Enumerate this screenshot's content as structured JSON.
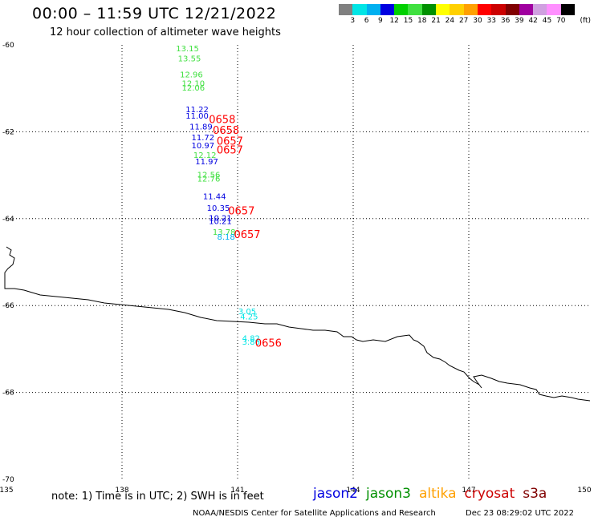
{
  "header": {
    "title": "00:00 – 11:59 UTC 12/21/2022",
    "subtitle": "12 hour collection of altimeter wave heights"
  },
  "colorbar": {
    "colors": [
      "#808080",
      "#00e5e5",
      "#00b0f0",
      "#0000e0",
      "#00d000",
      "#40e040",
      "#009000",
      "#ffff00",
      "#ffd000",
      "#ffa000",
      "#ff0000",
      "#cc0000",
      "#800000",
      "#a000a0",
      "#d0a0e0",
      "#ff90ff",
      "#000000"
    ],
    "labels": [
      "3",
      "6",
      "9",
      "12",
      "15",
      "18",
      "21",
      "24",
      "27",
      "30",
      "33",
      "36",
      "39",
      "42",
      "45",
      "70"
    ],
    "unit": "(ft)"
  },
  "map": {
    "lat_labels": [
      "-60",
      "-62",
      "-64",
      "-66",
      "-68",
      "-70"
    ],
    "lon_labels": [
      "135",
      "138",
      "141",
      "144",
      "147",
      "150"
    ],
    "observations": [
      {
        "text": "13.15",
        "color": "#40e040",
        "lat": -60.15,
        "lon": 139.7
      },
      {
        "text": "13.55",
        "color": "#40e040",
        "lat": -60.38,
        "lon": 139.75
      },
      {
        "text": "12.96",
        "color": "#40e040",
        "lat": -60.75,
        "lon": 139.8
      },
      {
        "text": "12.10",
        "color": "#40e040",
        "lat": -60.95,
        "lon": 139.85
      },
      {
        "text": "12.06",
        "color": "#40e040",
        "lat": -61.05,
        "lon": 139.85
      },
      {
        "text": "11.22",
        "color": "#0000e0",
        "lat": -61.55,
        "lon": 139.95
      },
      {
        "text": "11.00",
        "color": "#0000e0",
        "lat": -61.7,
        "lon": 139.95
      },
      {
        "text": "11.89",
        "color": "#0000e0",
        "lat": -61.95,
        "lon": 140.05
      },
      {
        "text": "11.72",
        "color": "#0000e0",
        "lat": -62.2,
        "lon": 140.1
      },
      {
        "text": "10.97",
        "color": "#0000e0",
        "lat": -62.38,
        "lon": 140.1
      },
      {
        "text": "12.12",
        "color": "#40e040",
        "lat": -62.6,
        "lon": 140.15
      },
      {
        "text": "11.97",
        "color": "#0000e0",
        "lat": -62.75,
        "lon": 140.2
      },
      {
        "text": "12.56",
        "color": "#40e040",
        "lat": -63.05,
        "lon": 140.25
      },
      {
        "text": "12.76",
        "color": "#40e040",
        "lat": -63.15,
        "lon": 140.25
      },
      {
        "text": "11.44",
        "color": "#0000e0",
        "lat": -63.55,
        "lon": 140.4
      },
      {
        "text": "10.35",
        "color": "#0000e0",
        "lat": -63.82,
        "lon": 140.5
      },
      {
        "text": "10.21",
        "color": "#0000e0",
        "lat": -64.05,
        "lon": 140.55
      },
      {
        "text": "10.21",
        "color": "#0000e0",
        "lat": -64.12,
        "lon": 140.55
      },
      {
        "text": "13.78",
        "color": "#40e040",
        "lat": -64.37,
        "lon": 140.65
      },
      {
        "text": "8.18",
        "color": "#00b0f0",
        "lat": -64.48,
        "lon": 140.7
      },
      {
        "text": "3.05",
        "color": "#00e5e5",
        "lat": -66.2,
        "lon": 141.25
      },
      {
        "text": "4.25",
        "color": "#00e5e5",
        "lat": -66.32,
        "lon": 141.3
      },
      {
        "text": "4.82",
        "color": "#00e5e5",
        "lat": -66.82,
        "lon": 141.35
      },
      {
        "text": "3.86",
        "color": "#00e5e5",
        "lat": -66.9,
        "lon": 141.35
      }
    ],
    "times": [
      {
        "text": "0658",
        "color": "#ff0000",
        "lat": -61.8,
        "lon": 140.6
      },
      {
        "text": "0658",
        "color": "#ff0000",
        "lat": -62.05,
        "lon": 140.7
      },
      {
        "text": "0657",
        "color": "#ff0000",
        "lat": -62.3,
        "lon": 140.8
      },
      {
        "text": "0657",
        "color": "#ff0000",
        "lat": -62.5,
        "lon": 140.8
      },
      {
        "text": "0657",
        "color": "#ff0000",
        "lat": -63.9,
        "lon": 141.1
      },
      {
        "text": "0657",
        "color": "#ff0000",
        "lat": -64.45,
        "lon": 141.25
      },
      {
        "text": "0656",
        "color": "#ff0000",
        "lat": -66.95,
        "lon": 141.8
      }
    ]
  },
  "footer": {
    "note": "note:  1) Time is in UTC;  2) SWH is in feet",
    "legend": [
      {
        "label": "jason2",
        "color": "#0000e0"
      },
      {
        "label": "jason3",
        "color": "#009000"
      },
      {
        "label": "altika",
        "color": "#ffa000"
      },
      {
        "label": "cryosat",
        "color": "#cc0000"
      },
      {
        "label": "s3a",
        "color": "#800000"
      }
    ],
    "credit": "NOAA/NESDIS Center for Satellite Applications and Research",
    "timestamp": "Dec 23 08:29:02 UTC 2022"
  }
}
